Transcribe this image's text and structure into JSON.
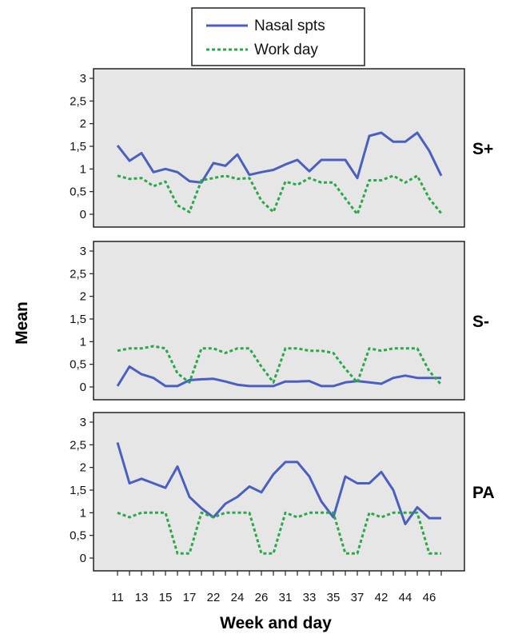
{
  "chart_data": {
    "type": "line",
    "ylabel": "Mean",
    "xlabel": "Week and day",
    "x": [
      "11",
      "12",
      "13",
      "14",
      "15",
      "16",
      "17",
      "21",
      "22",
      "23",
      "24",
      "25",
      "26",
      "27",
      "31",
      "32",
      "33",
      "34",
      "35",
      "36",
      "37",
      "41",
      "42",
      "43",
      "44",
      "45",
      "46",
      "47"
    ],
    "x_tick_labels": [
      "11",
      "13",
      "15",
      "17",
      "22",
      "24",
      "26",
      "31",
      "33",
      "35",
      "37",
      "42",
      "44",
      "46"
    ],
    "y_tick_labels": [
      "0",
      "0,5",
      "1",
      "1,5",
      "2",
      "2,5",
      "3"
    ],
    "ylim": [
      0,
      3
    ],
    "legend": {
      "position": "top-center",
      "entries": [
        "Nasal spts",
        "Work day"
      ]
    },
    "series_styles": [
      {
        "name": "Nasal spts",
        "color": "#4a5fbf",
        "dash": "solid"
      },
      {
        "name": "Work day",
        "color": "#2aa84a",
        "dash": "dotted"
      }
    ],
    "panels": [
      {
        "label": "S+",
        "series": [
          {
            "name": "Nasal spts",
            "values": [
              1.52,
              1.18,
              1.35,
              0.93,
              1.0,
              0.93,
              0.73,
              0.7,
              1.13,
              1.07,
              1.32,
              0.87,
              0.93,
              0.98,
              1.1,
              1.2,
              0.95,
              1.2,
              1.2,
              1.2,
              0.8,
              1.73,
              1.8,
              1.6,
              1.6,
              1.8,
              1.4,
              0.85
            ]
          },
          {
            "name": "Work day",
            "values": [
              0.85,
              0.78,
              0.8,
              0.62,
              0.72,
              0.2,
              0.05,
              0.75,
              0.8,
              0.85,
              0.78,
              0.8,
              0.3,
              0.05,
              0.72,
              0.65,
              0.8,
              0.7,
              0.7,
              0.35,
              0.0,
              0.75,
              0.75,
              0.85,
              0.7,
              0.85,
              0.35,
              0.02
            ]
          }
        ]
      },
      {
        "label": "S-",
        "series": [
          {
            "name": "Nasal spts",
            "values": [
              0.02,
              0.45,
              0.28,
              0.2,
              0.02,
              0.02,
              0.15,
              0.17,
              0.18,
              0.12,
              0.05,
              0.02,
              0.02,
              0.02,
              0.12,
              0.12,
              0.13,
              0.02,
              0.02,
              0.1,
              0.13,
              0.1,
              0.07,
              0.2,
              0.25,
              0.2,
              0.2,
              0.2
            ]
          },
          {
            "name": "Work day",
            "values": [
              0.8,
              0.85,
              0.85,
              0.9,
              0.85,
              0.3,
              0.1,
              0.85,
              0.85,
              0.75,
              0.85,
              0.85,
              0.45,
              0.1,
              0.85,
              0.85,
              0.8,
              0.8,
              0.75,
              0.4,
              0.1,
              0.85,
              0.8,
              0.85,
              0.85,
              0.85,
              0.35,
              0.05
            ]
          }
        ]
      },
      {
        "label": "PA",
        "series": [
          {
            "name": "Nasal spts",
            "values": [
              2.55,
              1.65,
              1.75,
              1.65,
              1.55,
              2.02,
              1.35,
              1.1,
              0.9,
              1.2,
              1.35,
              1.58,
              1.45,
              1.85,
              2.12,
              2.12,
              1.8,
              1.25,
              0.9,
              1.8,
              1.65,
              1.65,
              1.9,
              1.5,
              0.75,
              1.12,
              0.88,
              0.88
            ]
          },
          {
            "name": "Work day",
            "values": [
              1.0,
              0.9,
              1.0,
              1.0,
              1.0,
              0.1,
              0.1,
              1.0,
              0.9,
              1.0,
              1.0,
              1.0,
              0.1,
              0.1,
              1.0,
              0.9,
              1.0,
              1.0,
              1.0,
              0.1,
              0.1,
              1.0,
              0.9,
              1.0,
              1.0,
              1.0,
              0.1,
              0.1
            ]
          }
        ]
      }
    ]
  }
}
